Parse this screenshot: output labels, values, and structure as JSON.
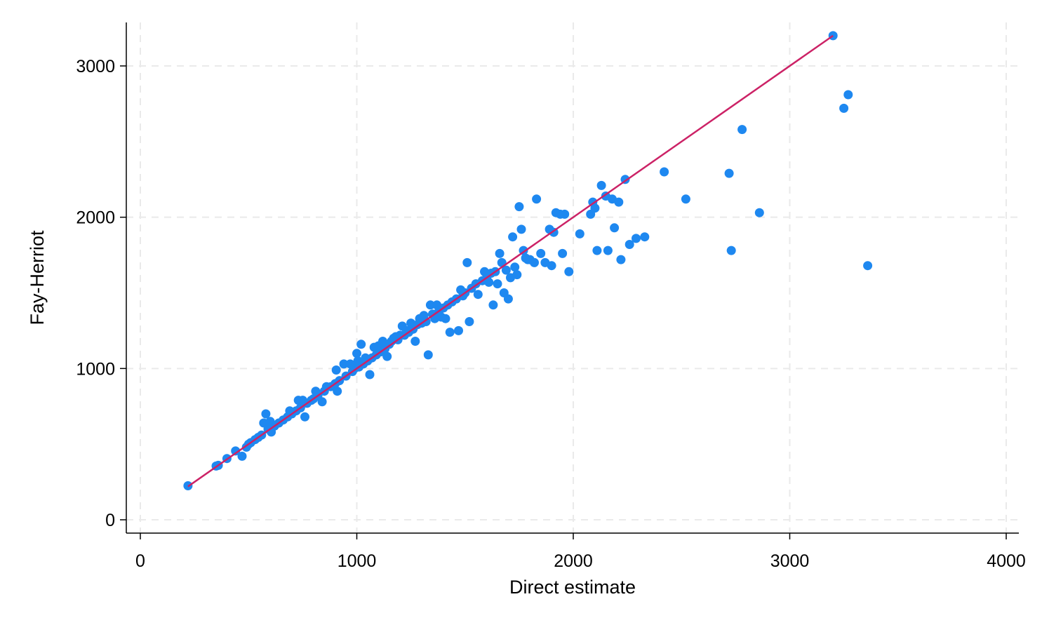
{
  "chart_data": {
    "type": "scatter",
    "title": "",
    "xlabel": "Direct estimate",
    "ylabel": "Fay-Herriot",
    "xlim": [
      0,
      4000
    ],
    "ylim": [
      0,
      3200
    ],
    "x_ticks": [
      0,
      1000,
      2000,
      3000,
      4000
    ],
    "y_ticks": [
      0,
      1000,
      2000,
      3000
    ],
    "x_tick_labels": [
      "0",
      "1000",
      "2000",
      "3000",
      "4000"
    ],
    "y_tick_labels": [
      "0",
      "1000",
      "2000",
      "3000"
    ],
    "grid": true,
    "legend": "none",
    "point_color": "#1e88f0",
    "line_color": "#cc2266",
    "reference_line": {
      "x": [
        220,
        3200
      ],
      "y": [
        220,
        3200
      ]
    },
    "points": [
      [
        220,
        225
      ],
      [
        350,
        355
      ],
      [
        360,
        360
      ],
      [
        400,
        405
      ],
      [
        440,
        455
      ],
      [
        470,
        420
      ],
      [
        490,
        480
      ],
      [
        500,
        500
      ],
      [
        510,
        510
      ],
      [
        530,
        530
      ],
      [
        545,
        545
      ],
      [
        560,
        560
      ],
      [
        570,
        640
      ],
      [
        580,
        700
      ],
      [
        590,
        600
      ],
      [
        600,
        650
      ],
      [
        605,
        580
      ],
      [
        620,
        620
      ],
      [
        640,
        640
      ],
      [
        660,
        660
      ],
      [
        680,
        680
      ],
      [
        690,
        720
      ],
      [
        700,
        700
      ],
      [
        720,
        720
      ],
      [
        730,
        790
      ],
      [
        740,
        740
      ],
      [
        750,
        790
      ],
      [
        760,
        680
      ],
      [
        770,
        770
      ],
      [
        790,
        790
      ],
      [
        800,
        800
      ],
      [
        810,
        850
      ],
      [
        820,
        820
      ],
      [
        840,
        780
      ],
      [
        850,
        850
      ],
      [
        860,
        880
      ],
      [
        880,
        880
      ],
      [
        900,
        900
      ],
      [
        905,
        990
      ],
      [
        910,
        850
      ],
      [
        920,
        920
      ],
      [
        940,
        1030
      ],
      [
        950,
        950
      ],
      [
        970,
        1030
      ],
      [
        980,
        980
      ],
      [
        990,
        1000
      ],
      [
        1000,
        1100
      ],
      [
        1005,
        1050
      ],
      [
        1010,
        1010
      ],
      [
        1020,
        1160
      ],
      [
        1030,
        1030
      ],
      [
        1040,
        1070
      ],
      [
        1050,
        1050
      ],
      [
        1060,
        960
      ],
      [
        1070,
        1070
      ],
      [
        1080,
        1140
      ],
      [
        1090,
        1090
      ],
      [
        1100,
        1150
      ],
      [
        1110,
        1110
      ],
      [
        1120,
        1180
      ],
      [
        1130,
        1130
      ],
      [
        1140,
        1080
      ],
      [
        1150,
        1160
      ],
      [
        1160,
        1180
      ],
      [
        1170,
        1200
      ],
      [
        1180,
        1210
      ],
      [
        1190,
        1190
      ],
      [
        1200,
        1220
      ],
      [
        1210,
        1280
      ],
      [
        1220,
        1220
      ],
      [
        1230,
        1250
      ],
      [
        1240,
        1240
      ],
      [
        1250,
        1300
      ],
      [
        1260,
        1260
      ],
      [
        1270,
        1180
      ],
      [
        1280,
        1290
      ],
      [
        1290,
        1330
      ],
      [
        1300,
        1300
      ],
      [
        1310,
        1350
      ],
      [
        1320,
        1310
      ],
      [
        1330,
        1090
      ],
      [
        1340,
        1420
      ],
      [
        1350,
        1360
      ],
      [
        1360,
        1330
      ],
      [
        1370,
        1420
      ],
      [
        1380,
        1380
      ],
      [
        1390,
        1340
      ],
      [
        1400,
        1400
      ],
      [
        1410,
        1330
      ],
      [
        1420,
        1420
      ],
      [
        1430,
        1240
      ],
      [
        1440,
        1440
      ],
      [
        1460,
        1460
      ],
      [
        1470,
        1250
      ],
      [
        1480,
        1520
      ],
      [
        1490,
        1480
      ],
      [
        1500,
        1500
      ],
      [
        1510,
        1700
      ],
      [
        1520,
        1310
      ],
      [
        1530,
        1530
      ],
      [
        1550,
        1560
      ],
      [
        1560,
        1490
      ],
      [
        1580,
        1580
      ],
      [
        1590,
        1640
      ],
      [
        1600,
        1600
      ],
      [
        1610,
        1570
      ],
      [
        1620,
        1630
      ],
      [
        1630,
        1420
      ],
      [
        1640,
        1640
      ],
      [
        1650,
        1560
      ],
      [
        1660,
        1760
      ],
      [
        1670,
        1700
      ],
      [
        1680,
        1500
      ],
      [
        1690,
        1650
      ],
      [
        1700,
        1460
      ],
      [
        1710,
        1600
      ],
      [
        1720,
        1870
      ],
      [
        1730,
        1670
      ],
      [
        1740,
        1620
      ],
      [
        1750,
        2070
      ],
      [
        1760,
        1920
      ],
      [
        1770,
        1780
      ],
      [
        1780,
        1730
      ],
      [
        1790,
        1720
      ],
      [
        1800,
        1720
      ],
      [
        1820,
        1700
      ],
      [
        1830,
        2120
      ],
      [
        1850,
        1760
      ],
      [
        1870,
        1700
      ],
      [
        1890,
        1920
      ],
      [
        1900,
        1680
      ],
      [
        1910,
        1900
      ],
      [
        1920,
        2030
      ],
      [
        1940,
        2020
      ],
      [
        1950,
        1760
      ],
      [
        1960,
        2020
      ],
      [
        1980,
        1640
      ],
      [
        2030,
        1890
      ],
      [
        2080,
        2020
      ],
      [
        2090,
        2100
      ],
      [
        2100,
        2060
      ],
      [
        2110,
        1780
      ],
      [
        2130,
        2210
      ],
      [
        2150,
        2140
      ],
      [
        2160,
        1780
      ],
      [
        2180,
        2120
      ],
      [
        2190,
        1930
      ],
      [
        2210,
        2100
      ],
      [
        2220,
        1720
      ],
      [
        2240,
        2250
      ],
      [
        2260,
        1820
      ],
      [
        2290,
        1860
      ],
      [
        2330,
        1870
      ],
      [
        2420,
        2300
      ],
      [
        2520,
        2120
      ],
      [
        2720,
        2290
      ],
      [
        2730,
        1780
      ],
      [
        2780,
        2580
      ],
      [
        2860,
        2030
      ],
      [
        3200,
        3200
      ],
      [
        3250,
        2720
      ],
      [
        3270,
        2810
      ],
      [
        3360,
        1680
      ]
    ]
  }
}
